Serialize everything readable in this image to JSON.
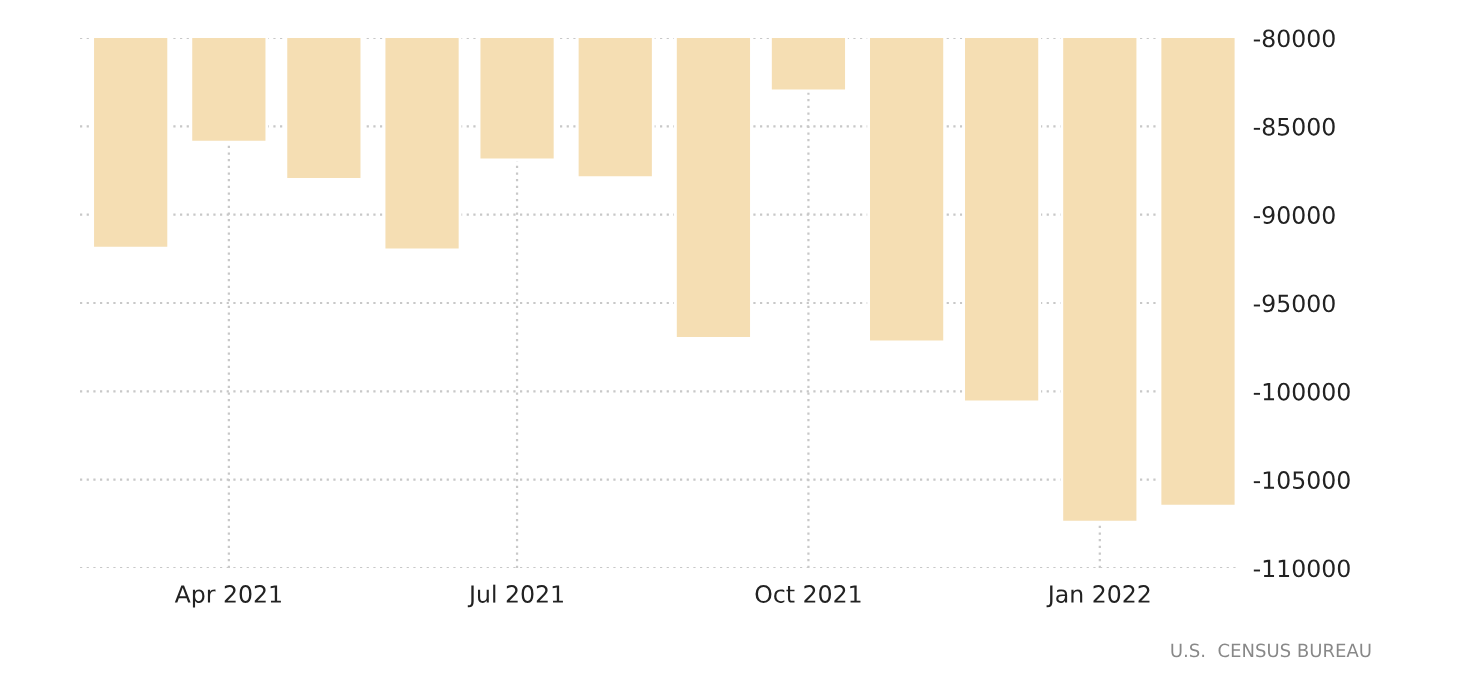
{
  "chart_data": {
    "type": "bar",
    "x": [
      "2021-03",
      "2021-04",
      "2021-05",
      "2021-06",
      "2021-07",
      "2021-08",
      "2021-09",
      "2021-10",
      "2021-11",
      "2021-12",
      "2022-01",
      "2022-02"
    ],
    "values": [
      -91900,
      -85900,
      -88000,
      -92000,
      -86900,
      -87900,
      -97000,
      -83000,
      -97200,
      -100600,
      -107400,
      -106500
    ],
    "color": "#f5deb3",
    "xlim": [
      "2021-02-13",
      "2022-02-13"
    ],
    "xticks": [
      {
        "value": "2021-04",
        "label": "Apr 2021"
      },
      {
        "value": "2021-07",
        "label": "Jul 2021"
      },
      {
        "value": "2021-10",
        "label": "Oct 2021"
      },
      {
        "value": "2022-01",
        "label": "Jan 2022"
      }
    ],
    "ylim": [
      -110000,
      -80000
    ],
    "yticks": [
      -80000,
      -85000,
      -90000,
      -95000,
      -100000,
      -105000,
      -110000
    ],
    "grid": true,
    "annotations": [
      "U.S.  CENSUS BUREAU"
    ]
  }
}
